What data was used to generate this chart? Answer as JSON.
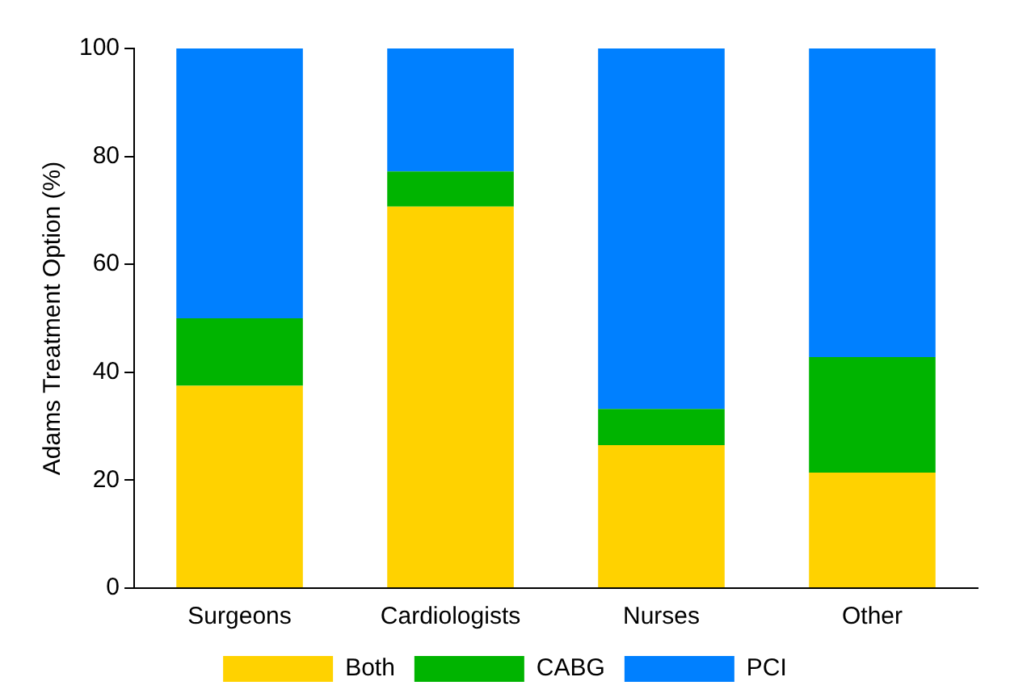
{
  "chart_data": {
    "type": "bar",
    "ylabel": "Adams Treatment Option (%)",
    "categories": [
      "Surgeons",
      "Cardiologists",
      "Nurses",
      "Other"
    ],
    "stacked": true,
    "series": [
      {
        "name": "Both",
        "color": "#ffd200",
        "values": [
          37.5,
          70.7,
          26.5,
          21.4
        ]
      },
      {
        "name": "CABG",
        "color": "#00b400",
        "values": [
          12.5,
          6.5,
          6.7,
          21.4
        ]
      },
      {
        "name": "PCI",
        "color": "#0080ff",
        "values": [
          50,
          22.8,
          66.8,
          57.2
        ]
      }
    ],
    "ylim": [
      0,
      100
    ],
    "yticks": [
      0,
      20,
      40,
      60,
      80,
      100
    ],
    "grid": false,
    "legend": "bottom"
  }
}
